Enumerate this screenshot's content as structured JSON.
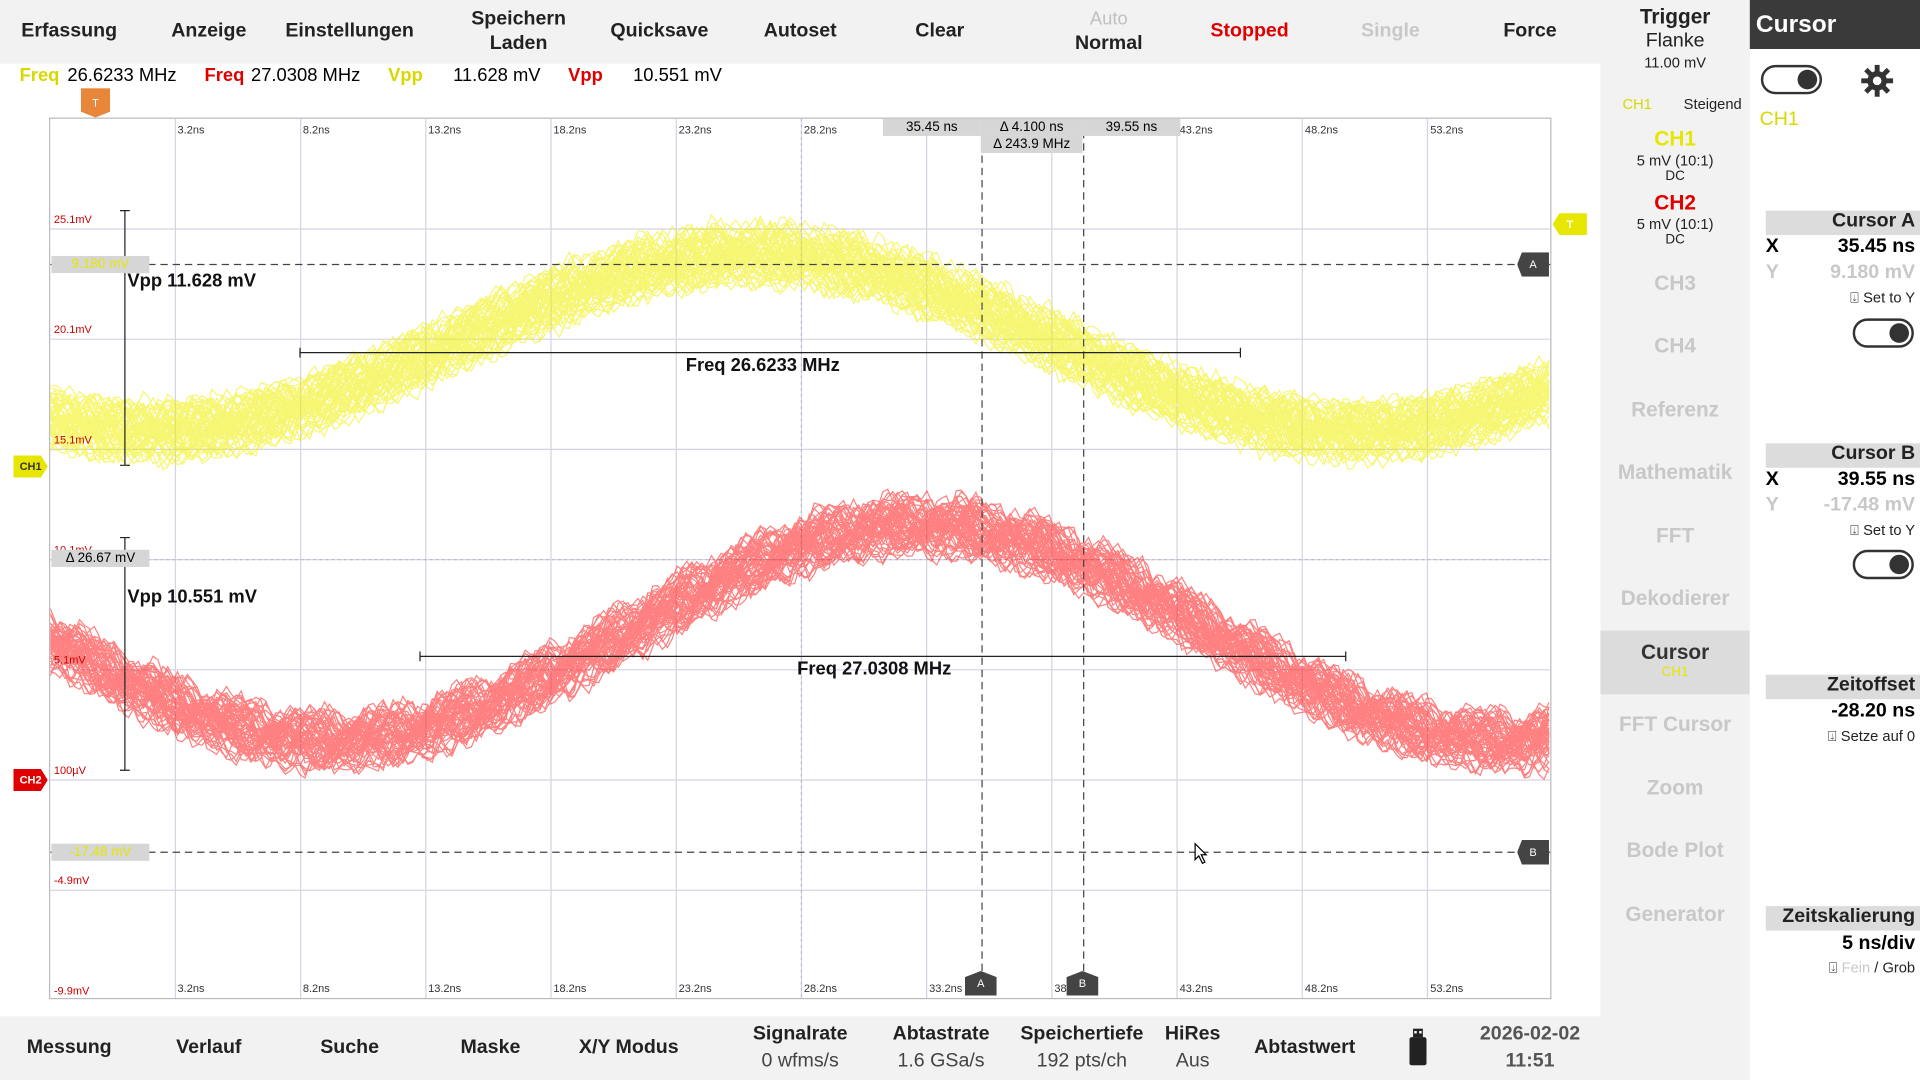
{
  "topbar": {
    "erfassung": "Erfassung",
    "anzeige": "Anzeige",
    "einstellungen": "Einstellungen",
    "speichern": "Speichern",
    "laden": "Laden",
    "quicksave": "Quicksave",
    "autoset": "Autoset",
    "clear": "Clear",
    "auto": "Auto",
    "normal": "Normal",
    "stopped": "Stopped",
    "single": "Single",
    "force": "Force"
  },
  "measurements": {
    "freq1_label": "Freq",
    "freq1_value": "26.6233 MHz",
    "freq2_label": "Freq",
    "freq2_value": "27.0308 MHz",
    "vpp1_label": "Vpp",
    "vpp1_value": "11.628 mV",
    "vpp2_label": "Vpp",
    "vpp2_value": "10.551 mV"
  },
  "plot": {
    "time_ticks_top": [
      "3.2ns",
      "8.2ns",
      "13.2ns",
      "18.2ns",
      "23.2ns",
      "28.2ns",
      "33.2ns",
      "38.2ns",
      "43.2ns",
      "48.2ns",
      "53.2ns"
    ],
    "time_ticks_bottom": [
      "3.2ns",
      "8.2ns",
      "13.2ns",
      "18.2ns",
      "23.2ns",
      "28.2ns",
      "33.2ns",
      "38.",
      "43.2ns",
      "48.2ns",
      "53.2ns"
    ],
    "y_ticks": [
      "25.1mV",
      "20.1mV",
      "15.1mV",
      "10.1mV",
      "5.1mV",
      "100µV",
      "-4.9mV",
      "-9.9mV"
    ],
    "trigger_marker": "T",
    "ch1_marker": "CH1",
    "ch2_marker": "CH2",
    "cursor_a_time": "35.45 ns",
    "cursor_b_time": "39.55 ns",
    "delta_time": "Δ 4.100 ns",
    "delta_freq": "Δ 243.9 MHz",
    "cursor_a_y": "9.180 mV",
    "cursor_b_y": "-17.48 mV",
    "delta_y": "Δ 26.67 mV",
    "cursor_a_tag": "A",
    "cursor_b_tag": "B",
    "vpp1_text": "Vpp 11.628 mV",
    "vpp2_text": "Vpp 10.551 mV",
    "freq1_text": "Freq 26.6233 MHz",
    "freq2_text": "Freq 27.0308 MHz",
    "colors": {
      "ch1": "#f0f000",
      "ch2": "#ff1a1a",
      "trigger": "#e8873a"
    }
  },
  "bottombar": {
    "messung": "Messung",
    "verlauf": "Verlauf",
    "suche": "Suche",
    "maske": "Maske",
    "xy": "X/Y Modus",
    "signalrate_k": "Signalrate",
    "signalrate_v": "0 wfms/s",
    "abtastrate_k": "Abtastrate",
    "abtastrate_v": "1.6 GSa/s",
    "speichertiefe_k": "Speichertiefe",
    "speichertiefe_v": "192 pts/ch",
    "hires_k": "HiRes",
    "hires_v": "Aus",
    "abtastwert": "Abtastwert",
    "usb_icon": "usb-stick-icon",
    "date": "2026-02-02",
    "time": "11:51"
  },
  "sidecol": {
    "trigger_title": "Trigger",
    "trigger_type": "Flanke",
    "trigger_level": "11.00 mV",
    "trigger_src": "CH1",
    "trigger_slope": "Steigend",
    "ch1": "CH1",
    "ch1_scale": "5 mV (10:1)",
    "ch1_coupling": "DC",
    "ch2": "CH2",
    "ch2_scale": "5 mV (10:1)",
    "ch2_coupling": "DC",
    "ch3": "CH3",
    "ch4": "CH4",
    "referenz": "Referenz",
    "mathematik": "Mathematik",
    "fft": "FFT",
    "dekodierer": "Dekodierer",
    "cursor": "Cursor",
    "cursor_src": "CH1",
    "fft_cursor": "FFT Cursor",
    "zoom": "Zoom",
    "bode": "Bode Plot",
    "generator": "Generator"
  },
  "cursorpanel": {
    "title": "Cursor",
    "source": "CH1",
    "cursor_a": "Cursor A",
    "a_x_label": "X",
    "a_x": "35.45 ns",
    "a_y_label": "Y",
    "a_y": "9.180 mV",
    "set_to_y": "Set to Y",
    "cursor_b": "Cursor B",
    "b_x_label": "X",
    "b_x": "39.55 ns",
    "b_y_label": "Y",
    "b_y": "-17.48 mV",
    "zeitoffset": "Zeitoffset",
    "zeitoffset_v": "-28.20 ns",
    "setze_auf_0": "Setze auf 0",
    "zeitskalierung": "Zeitskalierung",
    "zeitskalierung_v": "5 ns/div",
    "fein": "Fein",
    "grob": " / Grob"
  }
}
